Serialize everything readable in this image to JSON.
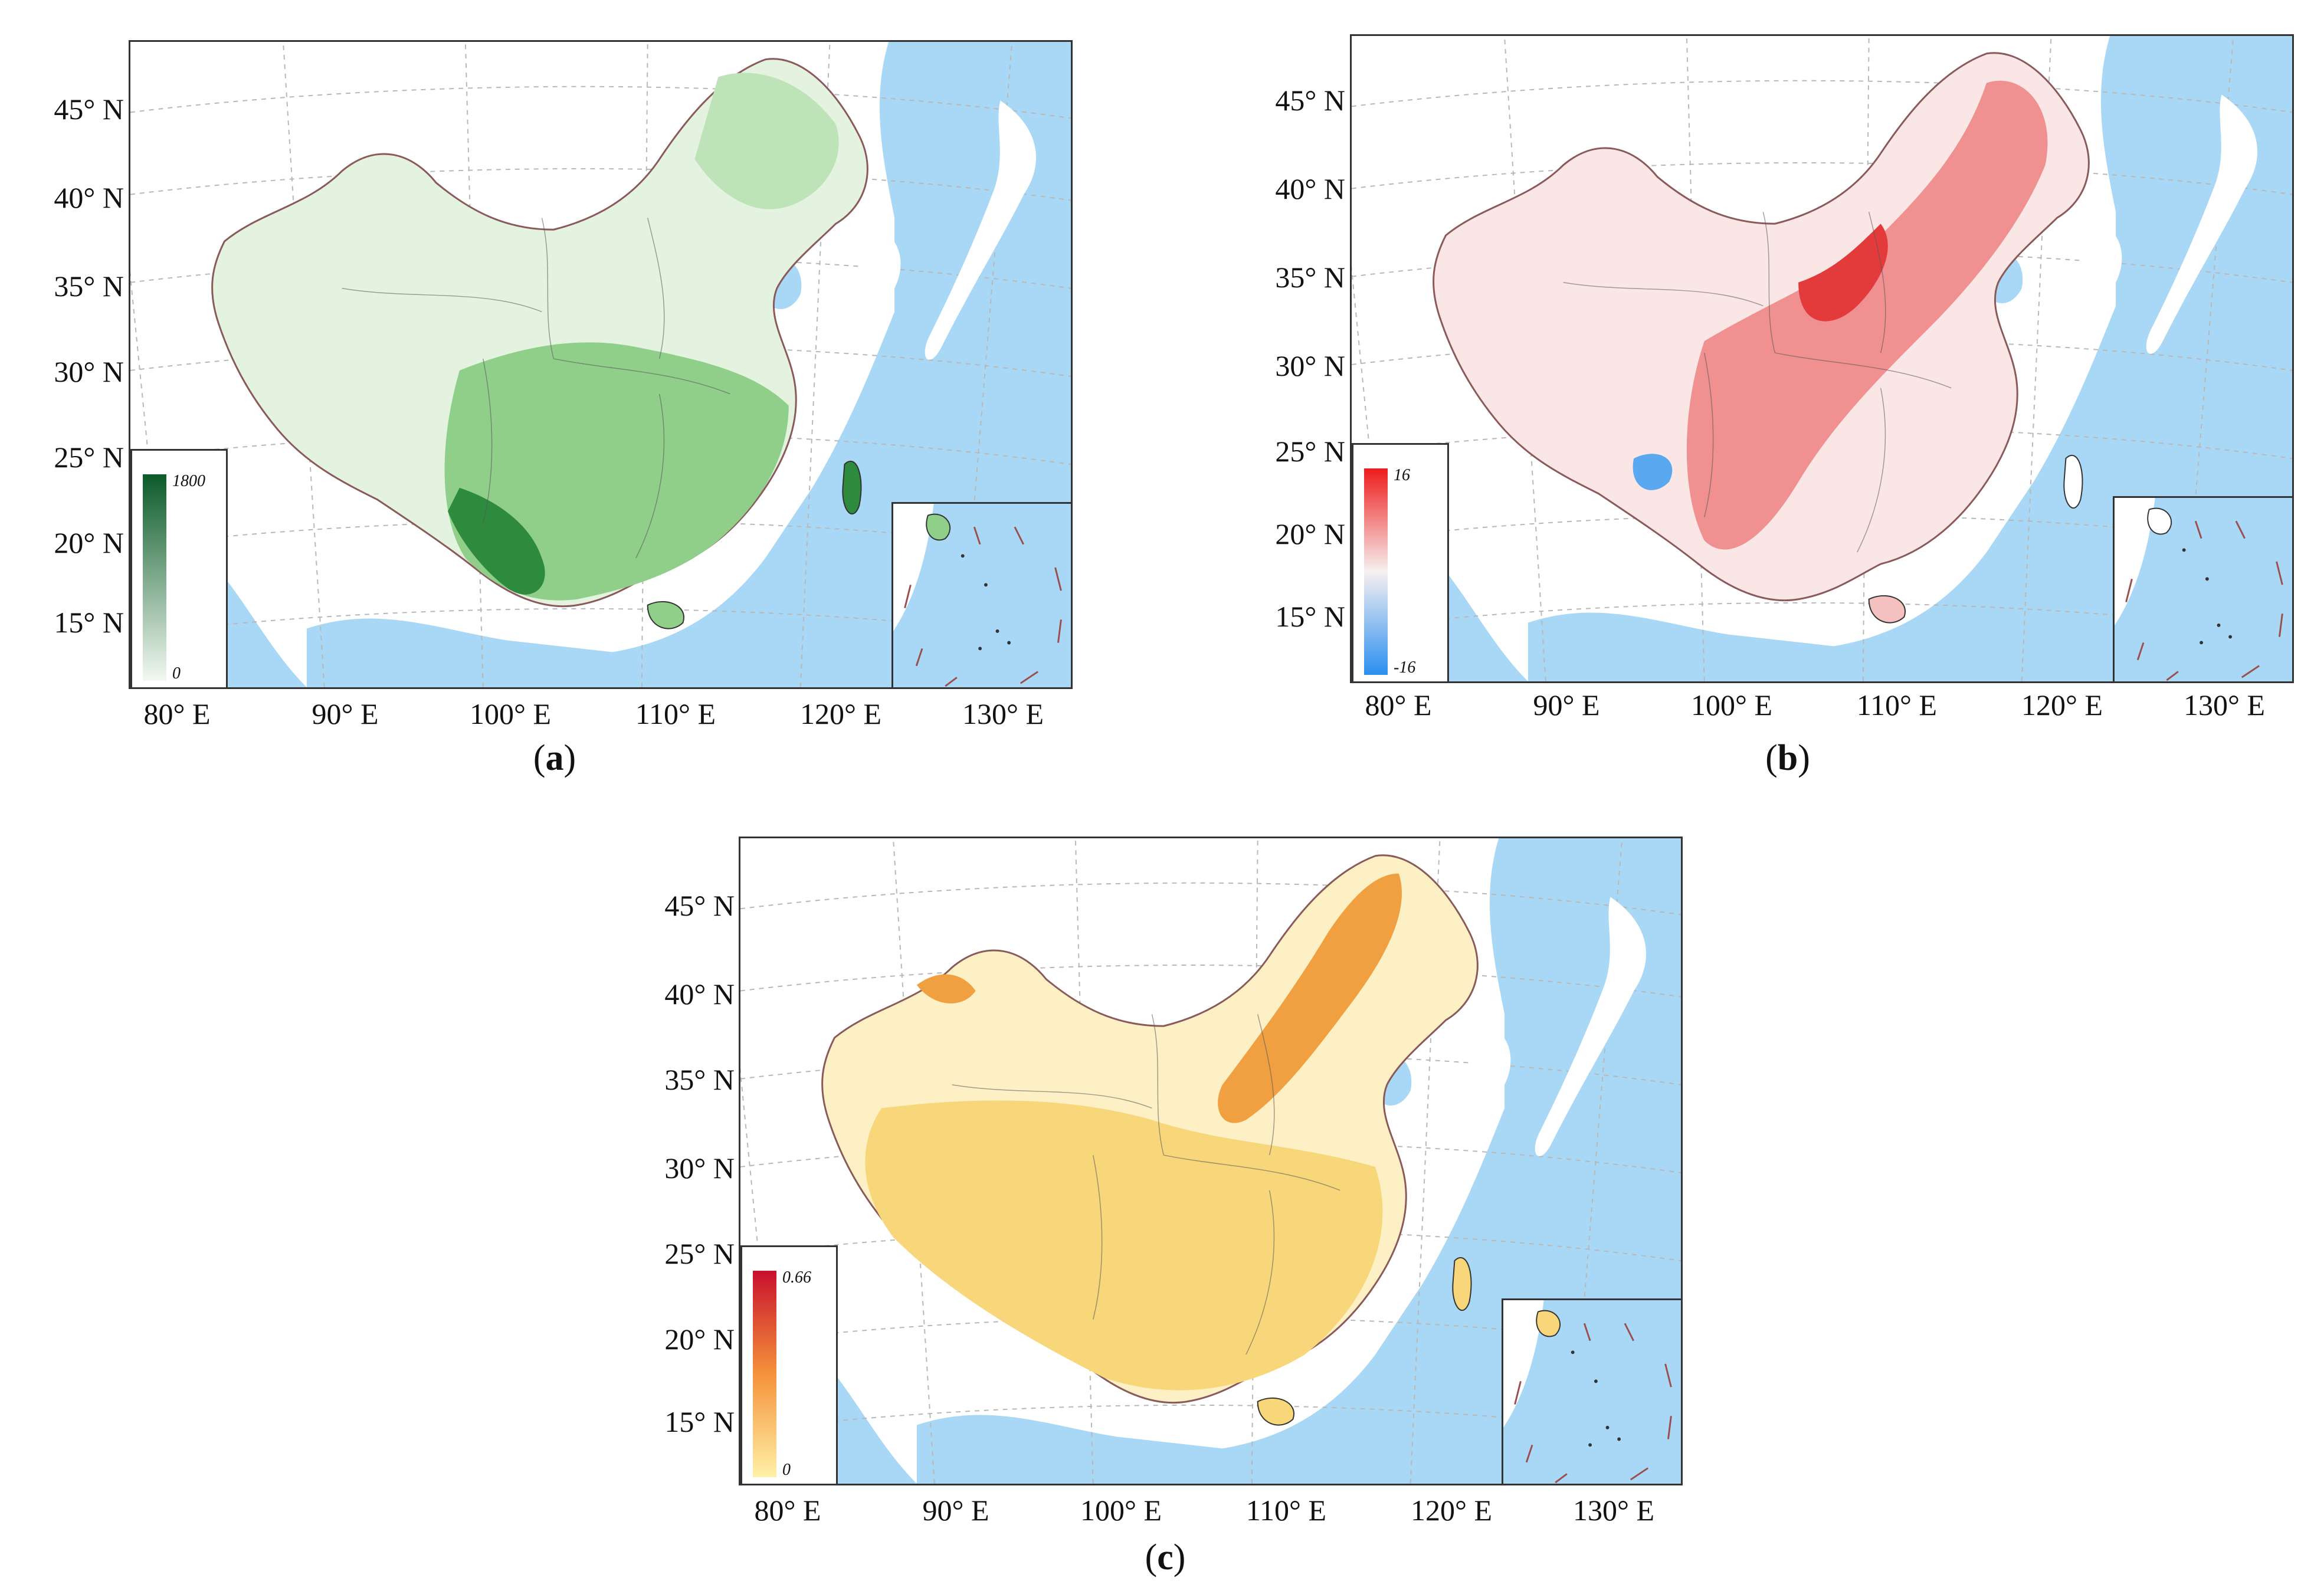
{
  "colors": {
    "sea": "#a8d8f5",
    "land_outside": "#ffffff",
    "border": "#8a5a5a",
    "graticule": "#b8b8b8"
  },
  "panels": [
    {
      "id": "a",
      "caption_open": "(",
      "caption_letter": "a",
      "caption_close": ")",
      "y_labels": [
        "45° N",
        "40° N",
        "35° N",
        "30° N",
        "25° N",
        "20° N",
        "15° N"
      ],
      "x_labels": [
        "80° E",
        "90° E",
        "100° E",
        "110° E",
        "120° E",
        "130° E"
      ],
      "legend": {
        "max": "1800",
        "min": "0",
        "color_top": "#0b5a2a",
        "color_bottom": "#f2f9f0"
      },
      "fill_main": "#8fcf8a",
      "fill_light": "#e4f3e0",
      "fill_dark": "#2e8b3e"
    },
    {
      "id": "b",
      "caption_open": "(",
      "caption_letter": "b",
      "caption_close": ")",
      "y_labels": [
        "45° N",
        "40° N",
        "35° N",
        "30° N",
        "25° N",
        "20° N",
        "15° N"
      ],
      "x_labels": [
        "80° E",
        "90° E",
        "100° E",
        "110° E",
        "120° E",
        "130° E"
      ],
      "legend": {
        "max": "16",
        "min": "-16",
        "color_top": "#ee1c1c",
        "color_mid": "#f7f0f0",
        "color_bottom": "#2a8ff0"
      },
      "fill_main": "#f09090",
      "fill_light": "#fbe6e6",
      "fill_dark": "#e33b3b"
    },
    {
      "id": "c",
      "caption_open": "(",
      "caption_letter": "c",
      "caption_close": ")",
      "y_labels": [
        "45° N",
        "40° N",
        "35° N",
        "30° N",
        "25° N",
        "20° N",
        "15° N"
      ],
      "x_labels": [
        "80° E",
        "90° E",
        "100° E",
        "110° E",
        "120° E",
        "130° E"
      ],
      "legend": {
        "max": "0.66",
        "min": "0",
        "color_top": "#c8102e",
        "color_mid": "#f5933a",
        "color_bottom": "#fff1a8"
      },
      "fill_main": "#f8d77a",
      "fill_light": "#fdf0c4",
      "fill_dark": "#f0a040"
    }
  ]
}
